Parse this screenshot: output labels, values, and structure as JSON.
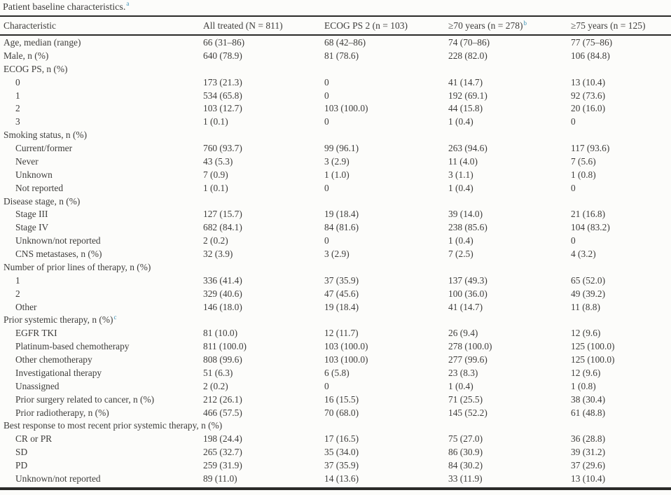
{
  "colors": {
    "background": "#fcfcfa",
    "text": "#3e3d3b",
    "rule": "#2a2a28",
    "footnote_marker": "#3a8fb3"
  },
  "title": {
    "text": "Patient baseline characteristics.",
    "footnote_marker": "a"
  },
  "table": {
    "header": [
      {
        "label": "Characteristic",
        "footnote_marker": ""
      },
      {
        "label": "All treated (N = 811)",
        "footnote_marker": ""
      },
      {
        "label": "ECOG PS 2 (n = 103)",
        "footnote_marker": ""
      },
      {
        "label": "≥70 years (n = 278)",
        "footnote_marker": "b"
      },
      {
        "label": "≥75 years (n = 125)",
        "footnote_marker": ""
      }
    ],
    "rows": [
      {
        "label": "Age, median (range)",
        "indent": false,
        "footnote_marker": "",
        "values": [
          "66 (31–86)",
          "68 (42–86)",
          "74 (70–86)",
          "77 (75–86)"
        ]
      },
      {
        "label": "Male, n (%)",
        "indent": false,
        "footnote_marker": "",
        "values": [
          "640 (78.9)",
          "81 (78.6)",
          "228 (82.0)",
          "106 (84.8)"
        ]
      },
      {
        "label": "ECOG PS, n (%)",
        "indent": false,
        "footnote_marker": "",
        "values": []
      },
      {
        "label": "0",
        "indent": true,
        "footnote_marker": "",
        "values": [
          "173 (21.3)",
          "0",
          "41 (14.7)",
          "13 (10.4)"
        ]
      },
      {
        "label": "1",
        "indent": true,
        "footnote_marker": "",
        "values": [
          "534 (65.8)",
          "0",
          "192 (69.1)",
          "92 (73.6)"
        ]
      },
      {
        "label": "2",
        "indent": true,
        "footnote_marker": "",
        "values": [
          "103 (12.7)",
          "103 (100.0)",
          "44 (15.8)",
          "20 (16.0)"
        ]
      },
      {
        "label": "3",
        "indent": true,
        "footnote_marker": "",
        "values": [
          "1 (0.1)",
          "0",
          "1 (0.4)",
          "0"
        ]
      },
      {
        "label": "Smoking status, n (%)",
        "indent": false,
        "footnote_marker": "",
        "values": []
      },
      {
        "label": "Current/former",
        "indent": true,
        "footnote_marker": "",
        "values": [
          "760 (93.7)",
          "99 (96.1)",
          "263 (94.6)",
          "117 (93.6)"
        ]
      },
      {
        "label": "Never",
        "indent": true,
        "footnote_marker": "",
        "values": [
          "43 (5.3)",
          "3 (2.9)",
          "11 (4.0)",
          "7 (5.6)"
        ]
      },
      {
        "label": "Unknown",
        "indent": true,
        "footnote_marker": "",
        "values": [
          "7 (0.9)",
          "1 (1.0)",
          "3 (1.1)",
          "1 (0.8)"
        ]
      },
      {
        "label": "Not reported",
        "indent": true,
        "footnote_marker": "",
        "values": [
          "1 (0.1)",
          "0",
          "1 (0.4)",
          "0"
        ]
      },
      {
        "label": "Disease stage, n (%)",
        "indent": false,
        "footnote_marker": "",
        "values": []
      },
      {
        "label": "Stage III",
        "indent": true,
        "footnote_marker": "",
        "values": [
          "127 (15.7)",
          "19 (18.4)",
          "39 (14.0)",
          "21 (16.8)"
        ]
      },
      {
        "label": "Stage IV",
        "indent": true,
        "footnote_marker": "",
        "values": [
          "682 (84.1)",
          "84 (81.6)",
          "238 (85.6)",
          "104 (83.2)"
        ]
      },
      {
        "label": "Unknown/not reported",
        "indent": true,
        "footnote_marker": "",
        "values": [
          "2 (0.2)",
          "0",
          "1 (0.4)",
          "0"
        ]
      },
      {
        "label": "CNS metastases, n (%)",
        "indent": true,
        "footnote_marker": "",
        "values": [
          "32 (3.9)",
          "3 (2.9)",
          "7 (2.5)",
          "4 (3.2)"
        ]
      },
      {
        "label": "Number of prior lines of therapy, n (%)",
        "indent": false,
        "footnote_marker": "",
        "values": []
      },
      {
        "label": "1",
        "indent": true,
        "footnote_marker": "",
        "values": [
          "336 (41.4)",
          "37 (35.9)",
          "137 (49.3)",
          "65 (52.0)"
        ]
      },
      {
        "label": "2",
        "indent": true,
        "footnote_marker": "",
        "values": [
          "329 (40.6)",
          "47 (45.6)",
          "100 (36.0)",
          "49 (39.2)"
        ]
      },
      {
        "label": "Other",
        "indent": true,
        "footnote_marker": "",
        "values": [
          "146 (18.0)",
          "19 (18.4)",
          "41 (14.7)",
          "11 (8.8)"
        ]
      },
      {
        "label": "Prior systemic therapy, n (%)",
        "indent": false,
        "footnote_marker": "c",
        "values": []
      },
      {
        "label": "EGFR TKI",
        "indent": true,
        "footnote_marker": "",
        "values": [
          "81 (10.0)",
          "12 (11.7)",
          "26 (9.4)",
          "12 (9.6)"
        ]
      },
      {
        "label": "Platinum-based chemotherapy",
        "indent": true,
        "footnote_marker": "",
        "values": [
          "811 (100.0)",
          "103 (100.0)",
          "278 (100.0)",
          "125 (100.0)"
        ]
      },
      {
        "label": "Other chemotherapy",
        "indent": true,
        "footnote_marker": "",
        "values": [
          "808 (99.6)",
          "103 (100.0)",
          "277 (99.6)",
          "125 (100.0)"
        ]
      },
      {
        "label": "Investigational therapy",
        "indent": true,
        "footnote_marker": "",
        "values": [
          "51 (6.3)",
          "6 (5.8)",
          "23 (8.3)",
          "12 (9.6)"
        ]
      },
      {
        "label": "Unassigned",
        "indent": true,
        "footnote_marker": "",
        "values": [
          "2 (0.2)",
          "0",
          "1 (0.4)",
          "1 (0.8)"
        ]
      },
      {
        "label": "Prior surgery related to cancer, n (%)",
        "indent": true,
        "footnote_marker": "",
        "values": [
          "212 (26.1)",
          "16 (15.5)",
          "71 (25.5)",
          "38 (30.4)"
        ]
      },
      {
        "label": "Prior radiotherapy, n (%)",
        "indent": true,
        "footnote_marker": "",
        "values": [
          "466 (57.5)",
          "70 (68.0)",
          "145 (52.2)",
          "61 (48.8)"
        ]
      },
      {
        "label": "Best response to most recent prior systemic therapy, n (%)",
        "indent": false,
        "footnote_marker": "",
        "values": []
      },
      {
        "label": "CR or PR",
        "indent": true,
        "footnote_marker": "",
        "values": [
          "198 (24.4)",
          "17 (16.5)",
          "75 (27.0)",
          "36 (28.8)"
        ]
      },
      {
        "label": "SD",
        "indent": true,
        "footnote_marker": "",
        "values": [
          "265 (32.7)",
          "35 (34.0)",
          "86 (30.9)",
          "39 (31.2)"
        ]
      },
      {
        "label": "PD",
        "indent": true,
        "footnote_marker": "",
        "values": [
          "259 (31.9)",
          "37 (35.9)",
          "84 (30.2)",
          "37 (29.6)"
        ]
      },
      {
        "label": "Unknown/not reported",
        "indent": true,
        "footnote_marker": "",
        "values": [
          "89 (11.0)",
          "14 (13.6)",
          "33 (11.9)",
          "13 (10.4)"
        ]
      }
    ]
  }
}
